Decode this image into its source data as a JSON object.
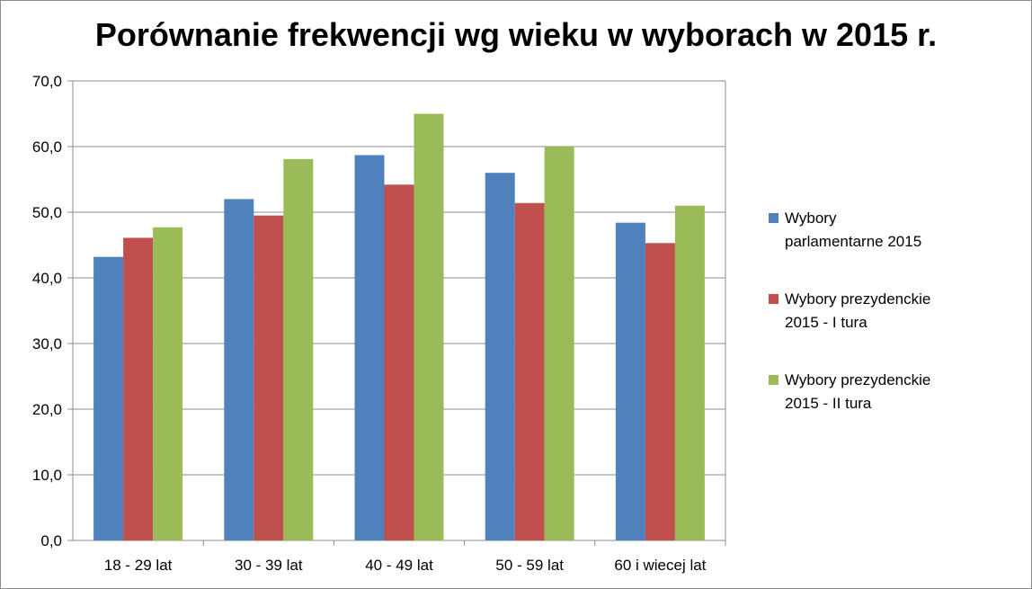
{
  "chart_data": {
    "type": "bar",
    "title": "Porównanie frekwencji wg wieku w wyborach w 2015 r.",
    "categories": [
      "18 - 29 lat",
      "30 - 39 lat",
      "40 - 49 lat",
      "50 - 59 lat",
      "60 i wiecej lat"
    ],
    "series": [
      {
        "name": "Wybory parlamentarne 2015",
        "color": "#4f81bd",
        "values": [
          43.2,
          52.0,
          58.7,
          56.0,
          48.4
        ]
      },
      {
        "name": "Wybory prezydenckie 2015 - I tura",
        "color": "#c0504d",
        "values": [
          46.1,
          49.5,
          54.2,
          51.4,
          45.3
        ]
      },
      {
        "name": "Wybory prezydenckie 2015 - II tura",
        "color": "#9bbb59",
        "values": [
          47.7,
          58.1,
          65.0,
          60.0,
          51.0
        ]
      }
    ],
    "ylim": [
      0,
      70
    ],
    "yticks": [
      "0,0",
      "10,0",
      "20,0",
      "30,0",
      "40,0",
      "50,0",
      "60,0",
      "70,0"
    ],
    "grid": true,
    "legend_position": "right"
  }
}
